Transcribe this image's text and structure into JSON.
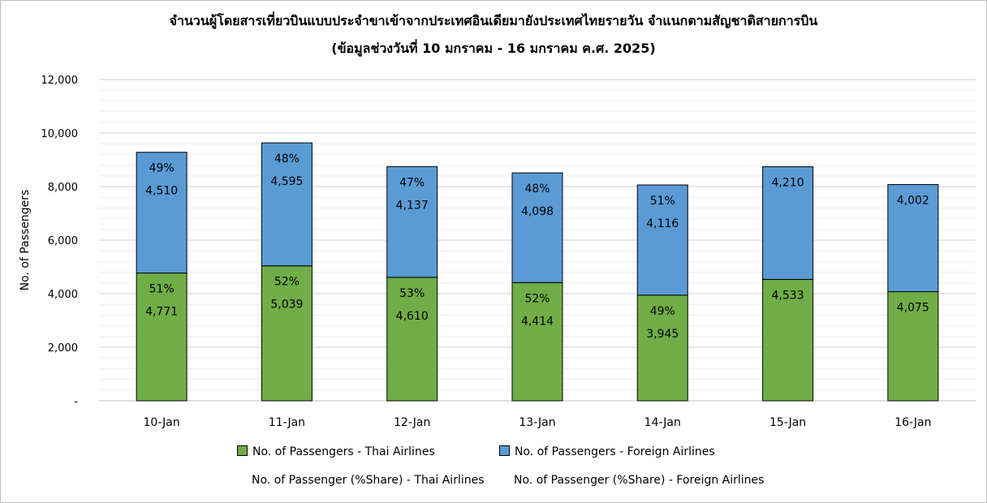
{
  "chart_data": {
    "type": "bar",
    "stacked": true,
    "title": "จำนวนผู้โดยสารเที่ยวบินแบบประจำขาเข้าจากประเทศอินเดียมายังประเทศไทยรายวัน  จำแนกตามสัญชาติสายการบิน",
    "subtitle": "(ข้อมูลช่วงวันที่ 10 มกราคม - 16 มกราคม ค.ศ. 2025)",
    "ylabel": "No. of Passengers",
    "xlabel": "",
    "ylim": [
      0,
      12000
    ],
    "yticks": [
      0,
      2000,
      4000,
      6000,
      8000,
      10000,
      12000
    ],
    "ytick_labels": [
      "-",
      "2,000",
      "4,000",
      "6,000",
      "8,000",
      "10,000",
      "12,000"
    ],
    "grid": true,
    "legend_position": "bottom",
    "categories": [
      "10-Jan",
      "11-Jan",
      "12-Jan",
      "13-Jan",
      "14-Jan",
      "15-Jan",
      "16-Jan"
    ],
    "series": [
      {
        "name": "No. of Passengers - Thai Airlines",
        "color": "#70ad47",
        "values": [
          4771,
          5039,
          4610,
          4414,
          3945,
          4533,
          4075
        ],
        "value_labels": [
          "4,771",
          "5,039",
          "4,610",
          "4,414",
          "3,945",
          "4,533",
          "4,075"
        ],
        "share_labels": [
          "51%",
          "52%",
          "53%",
          "52%",
          "49%",
          "",
          ""
        ]
      },
      {
        "name": "No. of Passengers - Foreign Airlines",
        "color": "#5b9bd5",
        "values": [
          4510,
          4595,
          4137,
          4098,
          4116,
          4210,
          4002
        ],
        "value_labels": [
          "4,510",
          "4,595",
          "4,137",
          "4,098",
          "4,116",
          "4,210",
          "4,002"
        ],
        "share_labels": [
          "49%",
          "48%",
          "47%",
          "48%",
          "51%",
          "",
          ""
        ]
      }
    ],
    "share_legend": [
      "No. of Passenger (%Share) - Thai Airlines",
      "No. of Passenger (%Share) - Foreign Airlines"
    ]
  }
}
